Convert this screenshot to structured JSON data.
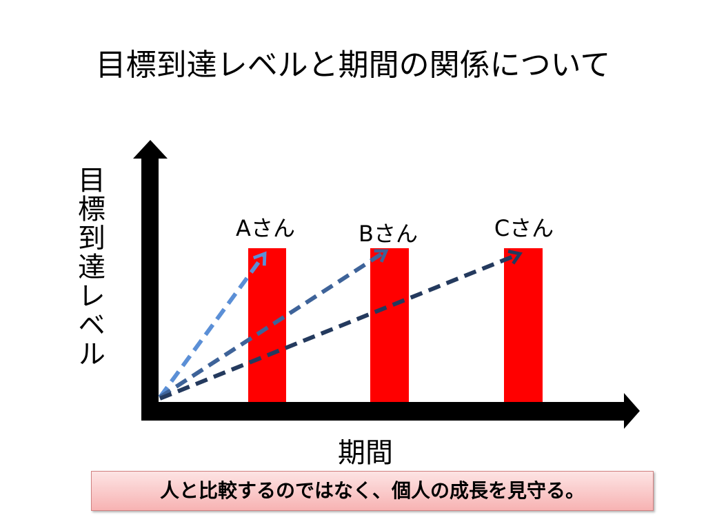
{
  "title": "目標到達レベルと期間の関係について",
  "y_axis_label": "目標到達レベル",
  "x_axis_label": "期間",
  "people": [
    "Aさん",
    "Bさん",
    "Cさん"
  ],
  "note": "人と比較するのではなく、個人の成長を見守る。"
}
